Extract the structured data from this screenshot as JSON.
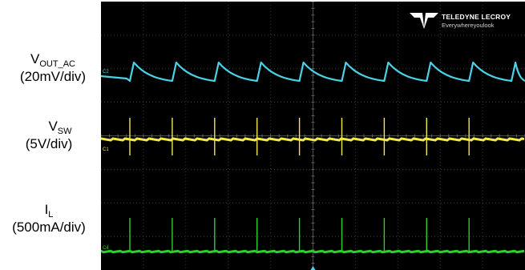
{
  "channels": [
    {
      "id": "vout",
      "name": "V",
      "sub": "OUT_AC",
      "scale": "(20mV/div)",
      "marker": "C2",
      "color": "#4ad2e6"
    },
    {
      "id": "vsw",
      "name": "V",
      "sub": "SW",
      "scale": "(5V/div)",
      "marker": "C1",
      "color": "#f3e94a"
    },
    {
      "id": "il",
      "name": "I",
      "sub": "L",
      "scale": "(500mA/div)",
      "marker": "C4",
      "color": "#2bd02b"
    }
  ],
  "brand": {
    "name": "TELEDYNE LECROY",
    "tagline": "Everywhereyoulook"
  },
  "chart_data": {
    "type": "line",
    "grid": true,
    "divisions": {
      "x": 10,
      "y": 8
    },
    "series": [
      {
        "name": "VOUT_AC",
        "scale": "20mV/div",
        "shape": "sawtooth",
        "period_div": 1.0,
        "pulses": 9
      },
      {
        "name": "VSW",
        "scale": "5V/div",
        "shape": "spike-train",
        "period_div": 1.0,
        "pulses": 9
      },
      {
        "name": "IL",
        "scale": "500mA/div",
        "shape": "spike-train",
        "period_div": 1.0,
        "pulses": 9
      }
    ]
  }
}
